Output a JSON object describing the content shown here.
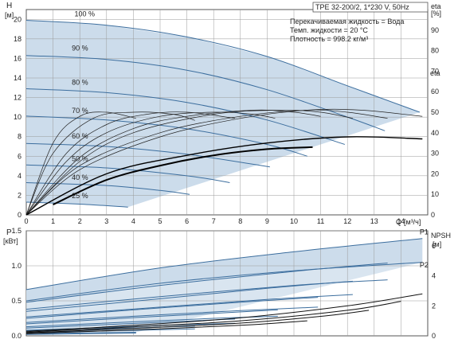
{
  "chart_data": [
    {
      "type": "line",
      "title": "TPE 32-200/2, 1*230 V, 50Hz",
      "info_lines": [
        "Перекачиваемая жидкость = Вода",
        "Темп. жидкости = 20 °C",
        "Плотность = 998.2 кг/м³"
      ],
      "ylabel": "H",
      "yunit": "[м]",
      "y2label": "eta",
      "y2unit": "[%]",
      "xlabel": "Q",
      "xunit": "[м³/ч]",
      "xlim": [
        0,
        15
      ],
      "ylim": [
        0,
        21
      ],
      "y2lim": [
        0,
        100
      ],
      "x_ticks": [
        "0",
        "1",
        "2",
        "3",
        "4",
        "5",
        "6",
        "7",
        "8",
        "9",
        "10",
        "11",
        "12",
        "13",
        "14"
      ],
      "y_ticks": [
        "0",
        "2",
        "4",
        "6",
        "8",
        "10",
        "12",
        "14",
        "16",
        "18",
        "20"
      ],
      "y2_ticks": [
        "0",
        "10",
        "20",
        "30",
        "40",
        "50",
        "60",
        "70",
        "80",
        "90"
      ],
      "grid": true,
      "operating_area_color": "#ccdceb",
      "curve_color": "#3c6e9e",
      "speed_labels": [
        {
          "text": "100 %",
          "x": 1.8,
          "y": 20.3
        },
        {
          "text": "90 %",
          "x": 1.7,
          "y": 16.8
        },
        {
          "text": "80 %",
          "x": 1.7,
          "y": 13.3
        },
        {
          "text": "70 %",
          "x": 1.7,
          "y": 10.4
        },
        {
          "text": "60 %",
          "x": 1.7,
          "y": 7.8
        },
        {
          "text": "50 %",
          "x": 1.7,
          "y": 5.5
        },
        {
          "text": "40 %",
          "x": 1.7,
          "y": 3.6
        },
        {
          "text": "25 %",
          "x": 1.7,
          "y": 1.7
        }
      ],
      "qh_curves": [
        {
          "speed": "100 %",
          "x": [
            0,
            3,
            6,
            9,
            12,
            14.7
          ],
          "y": [
            19.9,
            19.4,
            18.2,
            16.2,
            13.2,
            10.5
          ]
        },
        {
          "speed": "90 %",
          "x": [
            0,
            3,
            6,
            9,
            12,
            13.4
          ],
          "y": [
            16.3,
            15.9,
            14.8,
            12.8,
            10.0,
            8.6
          ]
        },
        {
          "speed": "80 %",
          "x": [
            0,
            3,
            6,
            9,
            11.9
          ],
          "y": [
            12.9,
            12.5,
            11.5,
            9.7,
            7.2
          ]
        },
        {
          "speed": "70 %",
          "x": [
            0,
            3,
            6,
            9,
            10.5
          ],
          "y": [
            10.1,
            9.7,
            8.8,
            7.2,
            6.0
          ]
        },
        {
          "speed": "60 %",
          "x": [
            0,
            3,
            6,
            9.1
          ],
          "y": [
            7.3,
            7.0,
            6.2,
            4.9
          ]
        },
        {
          "speed": "50 %",
          "x": [
            0,
            3,
            6,
            7.6
          ],
          "y": [
            5.1,
            4.8,
            4.0,
            3.3
          ]
        },
        {
          "speed": "40 %",
          "x": [
            0,
            3,
            5,
            6.1
          ],
          "y": [
            3.3,
            3.0,
            2.5,
            2.1
          ]
        },
        {
          "speed": "25 %",
          "x": [
            0,
            2,
            3.8
          ],
          "y": [
            1.3,
            1.1,
            0.8
          ]
        }
      ],
      "eta_curves": [
        {
          "speed": "100 %",
          "x": [
            0,
            2,
            5,
            8,
            10.5,
            12.5,
            14.8
          ],
          "eta": [
            0,
            22,
            38,
            47,
            51,
            51,
            48
          ]
        },
        {
          "speed": "90 %",
          "x": [
            0,
            2,
            5,
            8,
            10.5,
            12,
            13.5
          ],
          "eta": [
            0,
            24,
            40,
            48,
            51,
            50,
            47
          ]
        },
        {
          "speed": "80 %",
          "x": [
            0,
            2,
            4,
            7,
            9.5,
            11,
            12.2
          ],
          "eta": [
            0,
            26,
            40,
            49,
            51,
            50,
            47
          ]
        },
        {
          "speed": "70 %",
          "x": [
            0,
            2,
            4,
            6,
            8.5,
            10,
            11
          ],
          "eta": [
            0,
            28,
            42,
            48,
            51,
            50,
            48
          ]
        },
        {
          "speed": "60 %",
          "x": [
            0,
            1.5,
            3,
            5,
            7,
            8.5,
            9.3
          ],
          "eta": [
            0,
            26,
            40,
            48,
            50,
            49,
            47
          ]
        },
        {
          "speed": "50 %",
          "x": [
            0,
            1.5,
            3,
            4.5,
            6,
            7.8
          ],
          "eta": [
            0,
            30,
            44,
            49,
            50,
            47
          ]
        },
        {
          "speed": "40 %",
          "x": [
            0,
            1,
            2.5,
            4,
            5.5,
            6.3
          ],
          "eta": [
            0,
            30,
            47,
            50,
            49,
            46
          ]
        },
        {
          "speed": "25 %",
          "x": [
            0,
            1,
            2,
            3,
            4.1
          ],
          "eta": [
            0,
            35,
            48,
            50,
            47
          ]
        }
      ],
      "qh_max_curves": [
        {
          "name": "",
          "x": [
            0,
            3,
            6,
            9,
            12,
            14.8
          ],
          "eta": [
            0,
            20,
            29,
            35,
            38,
            37
          ]
        },
        {
          "name": "",
          "x": [
            1,
            3,
            5,
            7,
            9,
            10.7
          ],
          "eta": [
            5,
            17,
            24,
            29,
            32,
            33
          ]
        }
      ]
    },
    {
      "type": "line",
      "ylabel": "P",
      "yunit": "[кВт]",
      "y2label": "NPSH",
      "y2unit": "[м]",
      "xlim": [
        0,
        15
      ],
      "ylim": [
        0,
        1.5
      ],
      "y2lim": [
        0,
        7
      ],
      "y_ticks": [
        "0.0",
        "0.5",
        "1.0",
        "1.5"
      ],
      "y2_ticks": [
        "0",
        "2",
        "4",
        "6"
      ],
      "grid": true,
      "curve_labels": [
        {
          "text": "P1",
          "x": 14.7,
          "y": 1.45
        },
        {
          "text": "P2",
          "x": 14.7,
          "y": 0.98
        }
      ],
      "p1_curves": [
        {
          "speed": "100 %",
          "x": [
            0,
            5,
            10,
            14.8
          ],
          "y": [
            0.66,
            0.97,
            1.2,
            1.39
          ]
        },
        {
          "speed": "90 %",
          "x": [
            0,
            5,
            10,
            13.5
          ],
          "y": [
            0.48,
            0.72,
            0.92,
            1.04
          ]
        },
        {
          "speed": "80 %",
          "x": [
            0,
            5,
            9,
            12.2
          ],
          "y": [
            0.35,
            0.53,
            0.68,
            0.78
          ]
        },
        {
          "speed": "70 %",
          "x": [
            0,
            4,
            8,
            10.9
          ],
          "y": [
            0.25,
            0.37,
            0.48,
            0.55
          ]
        },
        {
          "speed": "60 %",
          "x": [
            0,
            4,
            7,
            9.4
          ],
          "y": [
            0.17,
            0.26,
            0.32,
            0.37
          ]
        },
        {
          "speed": "50 %",
          "x": [
            0,
            3,
            6,
            7.8
          ],
          "y": [
            0.11,
            0.16,
            0.21,
            0.24
          ]
        },
        {
          "speed": "40 %",
          "x": [
            0,
            3,
            6.3
          ],
          "y": [
            0.07,
            0.1,
            0.14
          ]
        },
        {
          "speed": "25 %",
          "x": [
            0,
            2,
            4.1
          ],
          "y": [
            0.03,
            0.04,
            0.05
          ]
        }
      ],
      "p2_curves": [
        {
          "speed": "100 %",
          "x": [
            0,
            5,
            10,
            14.8
          ],
          "y": [
            0.5,
            0.75,
            0.93,
            1.05
          ]
        },
        {
          "speed": "90 %",
          "x": [
            0,
            5,
            10,
            13.5
          ],
          "y": [
            0.38,
            0.56,
            0.72,
            0.8
          ]
        },
        {
          "speed": "80 %",
          "x": [
            0,
            5,
            9,
            12.2
          ],
          "y": [
            0.27,
            0.41,
            0.52,
            0.59
          ]
        },
        {
          "speed": "70 %",
          "x": [
            0,
            4,
            8,
            10.9
          ],
          "y": [
            0.19,
            0.28,
            0.36,
            0.41
          ]
        },
        {
          "speed": "60 %",
          "x": [
            0,
            4,
            7,
            9.4
          ],
          "y": [
            0.13,
            0.2,
            0.25,
            0.28
          ]
        },
        {
          "speed": "50 %",
          "x": [
            0,
            3,
            6,
            7.8
          ],
          "y": [
            0.08,
            0.12,
            0.16,
            0.18
          ]
        },
        {
          "speed": "40 %",
          "x": [
            0,
            3,
            6.3
          ],
          "y": [
            0.05,
            0.07,
            0.1
          ]
        },
        {
          "speed": "25 %",
          "x": [
            0,
            2,
            4.1
          ],
          "y": [
            0.02,
            0.03,
            0.04
          ]
        }
      ],
      "npsh_curves": [
        {
          "speed": "",
          "x": [
            0,
            4,
            8,
            12,
            14.8
          ],
          "npsh": [
            0.3,
            0.7,
            1.2,
            2.0,
            2.8
          ]
        },
        {
          "speed": "",
          "x": [
            0,
            4,
            8,
            12,
            14
          ],
          "npsh": [
            0.25,
            0.6,
            1.0,
            1.7,
            2.3
          ]
        },
        {
          "speed": "",
          "x": [
            0,
            4,
            8,
            11,
            12.8
          ],
          "npsh": [
            0.2,
            0.5,
            0.85,
            1.3,
            1.7
          ]
        },
        {
          "speed": "",
          "x": [
            0,
            4,
            8,
            10.5
          ],
          "npsh": [
            0.15,
            0.4,
            0.7,
            1.0
          ]
        }
      ]
    }
  ]
}
